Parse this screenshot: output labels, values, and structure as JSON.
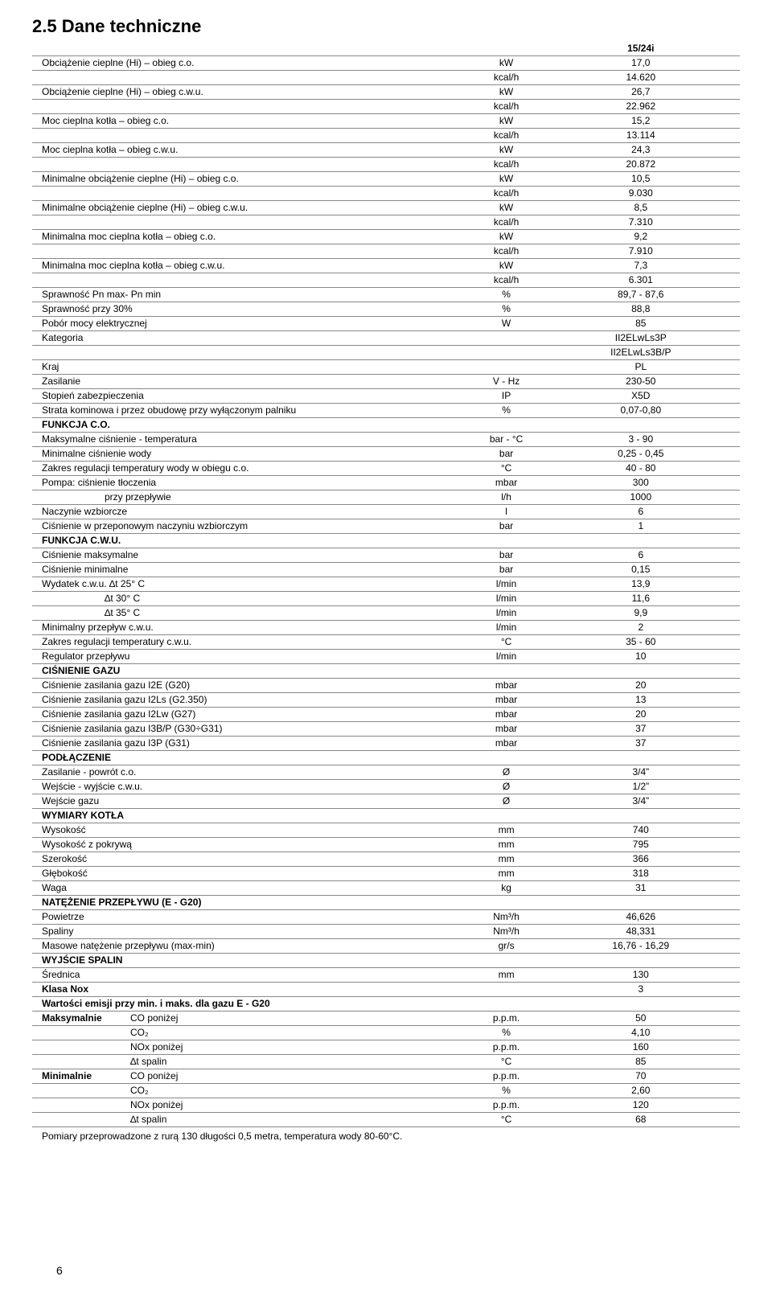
{
  "section_number": "2.5",
  "section_title": "Dane techniczne",
  "model_header": "15/24i",
  "footnote": "Pomiary przeprowadzone z rurą 130 długości 0,5 metra, temperatura wody 80-60°C.",
  "page_number": "6",
  "rows": [
    {
      "label": "Obciążenie cieplne (Hi) – obieg c.o.",
      "unit": "kW",
      "value": "17,0"
    },
    {
      "label": "",
      "unit": "kcal/h",
      "value": "14.620"
    },
    {
      "label": "Obciążenie cieplne (Hi) – obieg c.w.u.",
      "unit": "kW",
      "value": "26,7"
    },
    {
      "label": "",
      "unit": "kcal/h",
      "value": "22.962"
    },
    {
      "label": "Moc cieplna kotła – obieg c.o.",
      "unit": "kW",
      "value": "15,2"
    },
    {
      "label": "",
      "unit": "kcal/h",
      "value": "13.114"
    },
    {
      "label": "Moc cieplna kotła – obieg c.w.u.",
      "unit": "kW",
      "value": "24,3"
    },
    {
      "label": "",
      "unit": "kcal/h",
      "value": "20.872"
    },
    {
      "label": "Minimalne obciążenie cieplne (Hi) – obieg c.o.",
      "unit": "kW",
      "value": "10,5"
    },
    {
      "label": "",
      "unit": "kcal/h",
      "value": "9.030"
    },
    {
      "label": "Minimalne obciążenie cieplne (Hi) – obieg c.w.u.",
      "unit": "kW",
      "value": "8,5"
    },
    {
      "label": "",
      "unit": "kcal/h",
      "value": "7.310"
    },
    {
      "label": "Minimalna moc cieplna kotła – obieg c.o.",
      "unit": "kW",
      "value": "9,2"
    },
    {
      "label": "",
      "unit": "kcal/h",
      "value": "7.910"
    },
    {
      "label": "Minimalna moc cieplna kotła – obieg c.w.u.",
      "unit": "kW",
      "value": "7,3"
    },
    {
      "label": "",
      "unit": "kcal/h",
      "value": "6.301"
    },
    {
      "label": "Sprawność Pn max- Pn min",
      "unit": "%",
      "value": "89,7 - 87,6"
    },
    {
      "label": "Sprawność przy 30%",
      "unit": "%",
      "value": "88,8"
    },
    {
      "label": "Pobór mocy elektrycznej",
      "unit": "W",
      "value": "85"
    },
    {
      "label": "Kategoria",
      "unit": "",
      "value": "II2ELwLs3P"
    },
    {
      "label": "",
      "unit": "",
      "value": "II2ELwLs3B/P"
    },
    {
      "label": "Kraj",
      "unit": "",
      "value": "PL"
    },
    {
      "label": "Zasilanie",
      "unit": "V - Hz",
      "value": "230-50"
    },
    {
      "label": "Stopień zabezpieczenia",
      "unit": "IP",
      "value": "X5D"
    },
    {
      "label": "Strata kominowa i przez obudowę przy wyłączonym palniku",
      "unit": "%",
      "value": "0,07-0,80"
    },
    {
      "label": "FUNKCJA C.O.",
      "unit": "",
      "value": "",
      "bold": true
    },
    {
      "label": "Maksymalne ciśnienie - temperatura",
      "unit": "bar - °C",
      "value": "3 - 90"
    },
    {
      "label": "Minimalne ciśnienie wody",
      "unit": "bar",
      "value": "0,25 - 0,45"
    },
    {
      "label": "Zakres regulacji temperatury wody w obiegu c.o.",
      "unit": "°C",
      "value": "40 - 80"
    },
    {
      "label": "Pompa: ciśnienie tłoczenia",
      "unit": "mbar",
      "value": "300"
    },
    {
      "label": "przy przepływie",
      "unit": "l/h",
      "value": "1000",
      "indent": true
    },
    {
      "label": "Naczynie wzbiorcze",
      "unit": "l",
      "value": "6"
    },
    {
      "label": "Ciśnienie w przeponowym naczyniu wzbiorczym",
      "unit": "bar",
      "value": "1"
    },
    {
      "label": "FUNKCJA C.W.U.",
      "unit": "",
      "value": "",
      "bold": true
    },
    {
      "label": "Ciśnienie maksymalne",
      "unit": "bar",
      "value": "6"
    },
    {
      "label": "Ciśnienie minimalne",
      "unit": "bar",
      "value": "0,15"
    },
    {
      "label": "Wydatek c.w.u. ∆t 25° C",
      "unit": "l/min",
      "value": "13,9"
    },
    {
      "label": "∆t 30° C",
      "unit": "l/min",
      "value": "11,6",
      "indent": true
    },
    {
      "label": "∆t 35° C",
      "unit": "l/min",
      "value": "9,9",
      "indent": true
    },
    {
      "label": "Minimalny przepływ c.w.u.",
      "unit": "l/min",
      "value": "2"
    },
    {
      "label": "Zakres regulacji temperatury c.w.u.",
      "unit": "°C",
      "value": "35 - 60"
    },
    {
      "label": "Regulator przepływu",
      "unit": "l/min",
      "value": "10"
    },
    {
      "label": "CIŚNIENIE GAZU",
      "unit": "",
      "value": "",
      "bold": true
    },
    {
      "label": "Ciśnienie zasilania gazu I2E (G20)",
      "unit": "mbar",
      "value": "20"
    },
    {
      "label": "Ciśnienie zasilania gazu I2Ls (G2.350)",
      "unit": "mbar",
      "value": "13"
    },
    {
      "label": "Ciśnienie zasilania gazu I2Lw (G27)",
      "unit": "mbar",
      "value": "20"
    },
    {
      "label": "Ciśnienie zasilania gazu I3B/P (G30÷G31)",
      "unit": "mbar",
      "value": "37"
    },
    {
      "label": "Ciśnienie zasilania gazu I3P (G31)",
      "unit": "mbar",
      "value": "37"
    },
    {
      "label": "PODŁĄCZENIE",
      "unit": "",
      "value": "",
      "bold": true
    },
    {
      "label": "Zasilanie - powrót c.o.",
      "unit": "Ø",
      "value": "3/4”"
    },
    {
      "label": "Wejście - wyjście c.w.u.",
      "unit": "Ø",
      "value": "1/2”"
    },
    {
      "label": "Wejście gazu",
      "unit": "Ø",
      "value": "3/4”"
    },
    {
      "label": "WYMIARY KOTŁA",
      "unit": "",
      "value": "",
      "bold": true
    },
    {
      "label": "Wysokość",
      "unit": "mm",
      "value": "740"
    },
    {
      "label": "Wysokość z pokrywą",
      "unit": "mm",
      "value": "795"
    },
    {
      "label": "Szerokość",
      "unit": "mm",
      "value": "366"
    },
    {
      "label": "Głębokość",
      "unit": "mm",
      "value": "318"
    },
    {
      "label": "Waga",
      "unit": "kg",
      "value": "31"
    },
    {
      "label": "NATĘŻENIE PRZEPŁYWU (E - G20)",
      "unit": "",
      "value": "",
      "bold": true
    },
    {
      "label": "Powietrze",
      "unit": "Nm³/h",
      "value": "46,626"
    },
    {
      "label": "Spaliny",
      "unit": "Nm³/h",
      "value": "48,331"
    },
    {
      "label": "Masowe natężenie przepływu (max-min)",
      "unit": "gr/s",
      "value": "16,76 - 16,29"
    },
    {
      "label": "WYJŚCIE SPALIN",
      "unit": "",
      "value": "",
      "bold": true
    },
    {
      "label": "Średnica",
      "unit": "mm",
      "value": "130"
    },
    {
      "label": "Klasa Nox",
      "unit": "",
      "value": "3",
      "bold": true
    },
    {
      "label": "Wartości emisji przy min. i maks. dla gazu E - G20",
      "unit": "",
      "value": "",
      "bold": true
    },
    {
      "label": "Maksymalnie",
      "label2": "CO poniżej",
      "unit": "p.p.m.",
      "value": "50",
      "twocol": true,
      "bold": true
    },
    {
      "label": "",
      "label2": "CO₂",
      "unit": "%",
      "value": "4,10",
      "twocol": true
    },
    {
      "label": "",
      "label2": "NOx poniżej",
      "unit": "p.p.m.",
      "value": "160",
      "twocol": true
    },
    {
      "label": "",
      "label2": "∆t spalin",
      "unit": "°C",
      "value": "85",
      "twocol": true
    },
    {
      "label": "Minimalnie",
      "label2": "CO poniżej",
      "unit": "p.p.m.",
      "value": "70",
      "twocol": true,
      "bold": true
    },
    {
      "label": "",
      "label2": "CO₂",
      "unit": "%",
      "value": "2,60",
      "twocol": true
    },
    {
      "label": "",
      "label2": "NOx poniżej",
      "unit": "p.p.m.",
      "value": "120",
      "twocol": true
    },
    {
      "label": "",
      "label2": "∆t spalin",
      "unit": "°C",
      "value": "68",
      "twocol": true
    }
  ]
}
